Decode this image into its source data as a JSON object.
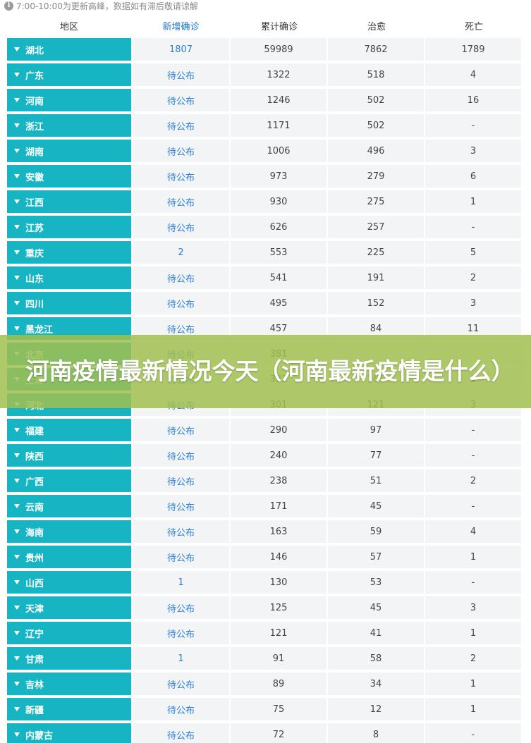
{
  "notice": {
    "icon": "info-icon",
    "text": "7:00-10:00为更新高峰，数据如有滞后敬请谅解"
  },
  "table": {
    "headers": {
      "region": "地区",
      "new": "新增确诊",
      "total": "累计确诊",
      "cured": "治愈",
      "dead": "死亡"
    },
    "rows": [
      {
        "region": "湖北",
        "new": "1807",
        "total": "59989",
        "cured": "7862",
        "dead": "1789"
      },
      {
        "region": "广东",
        "new": "待公布",
        "total": "1322",
        "cured": "518",
        "dead": "4"
      },
      {
        "region": "河南",
        "new": "待公布",
        "total": "1246",
        "cured": "502",
        "dead": "16"
      },
      {
        "region": "浙江",
        "new": "待公布",
        "total": "1171",
        "cured": "502",
        "dead": "-"
      },
      {
        "region": "湖南",
        "new": "待公布",
        "total": "1006",
        "cured": "496",
        "dead": "3"
      },
      {
        "region": "安徽",
        "new": "待公布",
        "total": "973",
        "cured": "279",
        "dead": "6"
      },
      {
        "region": "江西",
        "new": "待公布",
        "total": "930",
        "cured": "275",
        "dead": "1"
      },
      {
        "region": "江苏",
        "new": "待公布",
        "total": "626",
        "cured": "257",
        "dead": "-"
      },
      {
        "region": "重庆",
        "new": "2",
        "total": "553",
        "cured": "225",
        "dead": "5"
      },
      {
        "region": "山东",
        "new": "待公布",
        "total": "541",
        "cured": "191",
        "dead": "2"
      },
      {
        "region": "四川",
        "new": "待公布",
        "total": "495",
        "cured": "152",
        "dead": "3"
      },
      {
        "region": "黑龙江",
        "new": "待公布",
        "total": "457",
        "cured": "84",
        "dead": "11"
      },
      {
        "region": "北京",
        "new": "待公布",
        "total": "381",
        "cured": "",
        "dead": ""
      },
      {
        "region": "上海",
        "new": "待公布",
        "total": "332",
        "cured": "161",
        "dead": "1"
      },
      {
        "region": "河北",
        "new": "待公布",
        "total": "301",
        "cured": "121",
        "dead": "3"
      },
      {
        "region": "福建",
        "new": "待公布",
        "total": "290",
        "cured": "97",
        "dead": "-"
      },
      {
        "region": "陕西",
        "new": "待公布",
        "total": "240",
        "cured": "77",
        "dead": "-"
      },
      {
        "region": "广西",
        "new": "待公布",
        "total": "238",
        "cured": "51",
        "dead": "2"
      },
      {
        "region": "云南",
        "new": "待公布",
        "total": "171",
        "cured": "45",
        "dead": "-"
      },
      {
        "region": "海南",
        "new": "待公布",
        "total": "163",
        "cured": "59",
        "dead": "4"
      },
      {
        "region": "贵州",
        "new": "待公布",
        "total": "146",
        "cured": "57",
        "dead": "1"
      },
      {
        "region": "山西",
        "new": "1",
        "total": "130",
        "cured": "53",
        "dead": "-"
      },
      {
        "region": "天津",
        "new": "待公布",
        "total": "125",
        "cured": "45",
        "dead": "3"
      },
      {
        "region": "辽宁",
        "new": "待公布",
        "total": "121",
        "cured": "41",
        "dead": "1"
      },
      {
        "region": "甘肃",
        "new": "1",
        "total": "91",
        "cured": "58",
        "dead": "2"
      },
      {
        "region": "吉林",
        "new": "待公布",
        "total": "89",
        "cured": "34",
        "dead": "1"
      },
      {
        "region": "新疆",
        "new": "待公布",
        "total": "75",
        "cured": "12",
        "dead": "1"
      },
      {
        "region": "内蒙古",
        "new": "待公布",
        "total": "72",
        "cured": "8",
        "dead": "-"
      }
    ]
  },
  "banner": {
    "title": "河南疫情最新情况今天（河南最新疫情是什么）"
  },
  "colors": {
    "region_bg": "#17b5c3",
    "cell_bg": "#f3f4f6",
    "link_blue": "#2b7fd4",
    "banner_bg": "#a0be50"
  }
}
